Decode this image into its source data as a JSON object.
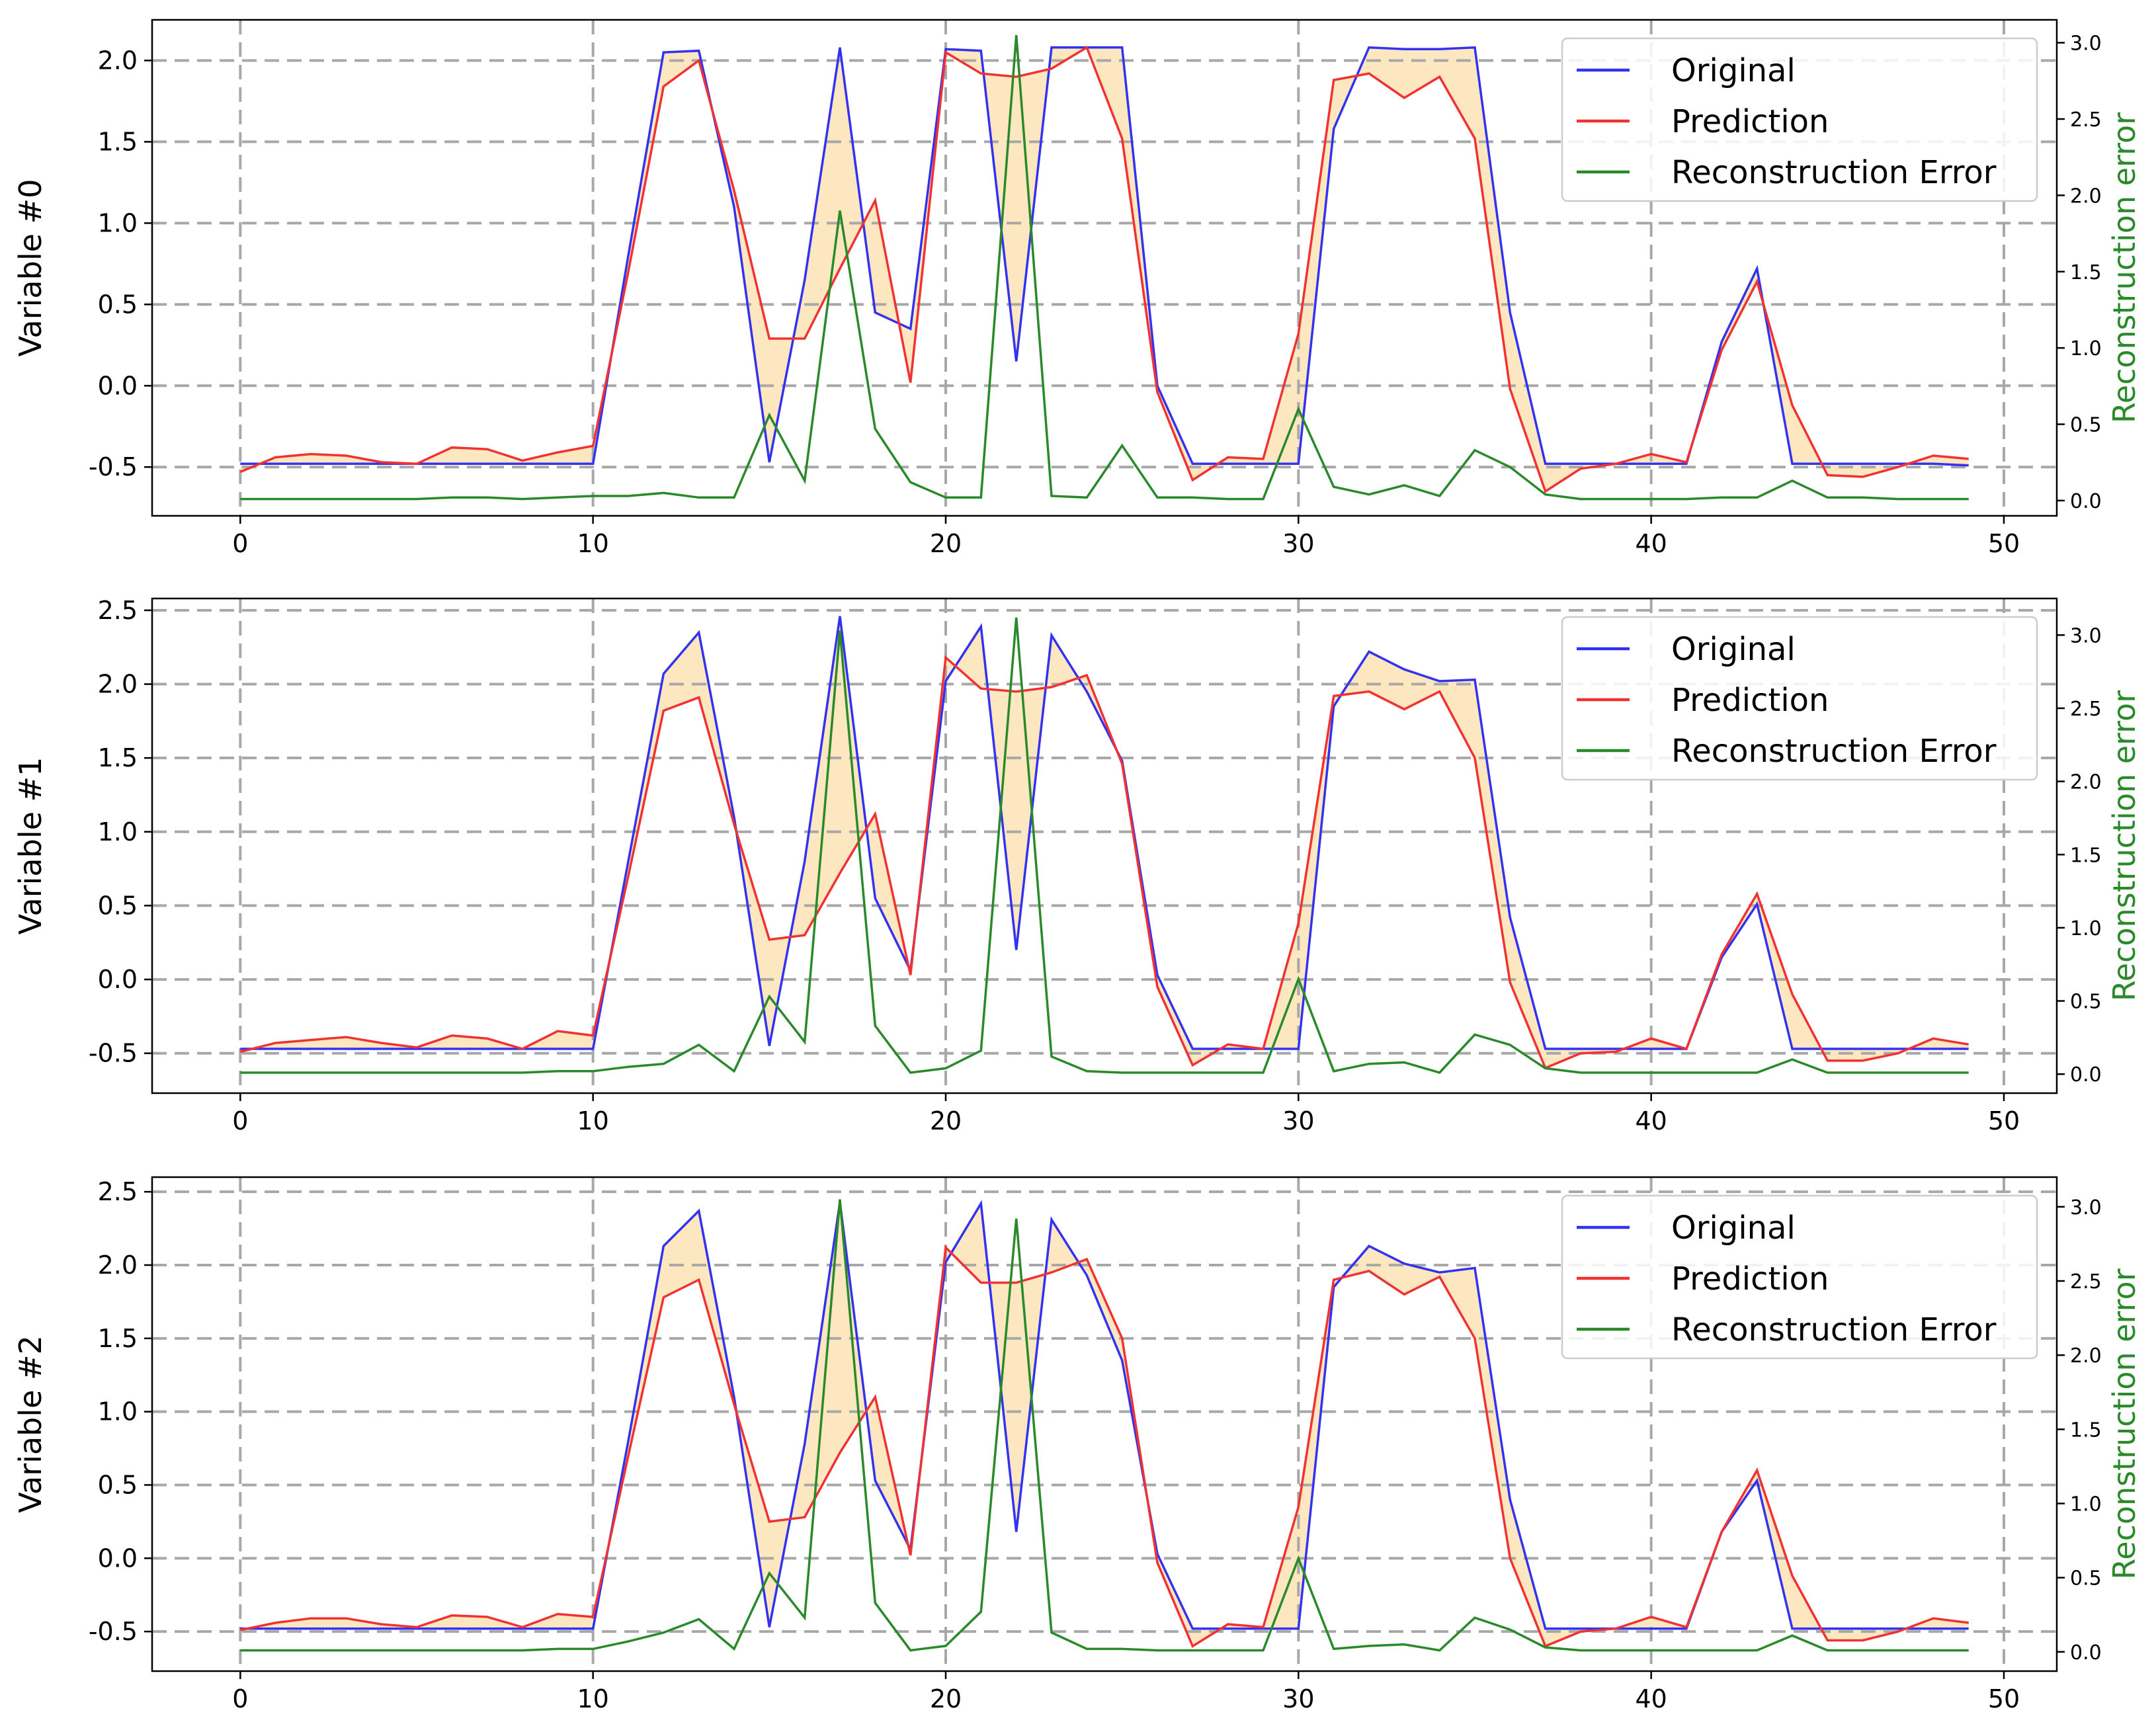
{
  "figure": {
    "colors": {
      "original": "#3232f0",
      "prediction": "#f03232",
      "error": "#2a8a2a",
      "fill": "#fde7c0",
      "grid": "#a8a8a8",
      "right_label": "#2a8a2a"
    }
  },
  "chart_data": [
    {
      "type": "line",
      "ylabel": "Variable #0",
      "y2label": "Reconstruction error",
      "xlim": [
        -2.5,
        51.5
      ],
      "ylim": [
        -0.8,
        2.25
      ],
      "y2lim": [
        -0.1,
        3.15
      ],
      "x_ticks": [
        0,
        10,
        20,
        30,
        40,
        50
      ],
      "y_ticks": [
        -0.5,
        0.0,
        0.5,
        1.0,
        1.5,
        2.0
      ],
      "y2_ticks": [
        0.0,
        0.5,
        1.0,
        1.5,
        2.0,
        2.5,
        3.0
      ],
      "grid": true,
      "legend_position": "upper right",
      "fill_between": [
        "Original",
        "Prediction"
      ],
      "series": [
        {
          "name": "Original",
          "axis": "left",
          "values": [
            -0.48,
            -0.48,
            -0.48,
            -0.48,
            -0.48,
            -0.48,
            -0.48,
            -0.48,
            -0.48,
            -0.48,
            -0.48,
            0.8,
            2.05,
            2.06,
            1.1,
            -0.47,
            0.65,
            2.08,
            0.45,
            0.35,
            2.07,
            2.06,
            0.15,
            2.08,
            2.08,
            2.08,
            0.0,
            -0.48,
            -0.48,
            -0.48,
            -0.48,
            1.58,
            2.08,
            2.07,
            2.07,
            2.08,
            0.45,
            -0.48,
            -0.48,
            -0.48,
            -0.48,
            -0.48,
            0.27,
            0.72,
            -0.48,
            -0.48,
            -0.48,
            -0.48,
            -0.48,
            -0.49
          ]
        },
        {
          "name": "Prediction",
          "axis": "left",
          "values": [
            -0.53,
            -0.44,
            -0.42,
            -0.43,
            -0.47,
            -0.48,
            -0.38,
            -0.39,
            -0.46,
            -0.41,
            -0.37,
            0.7,
            1.84,
            2.0,
            1.2,
            0.29,
            0.29,
            0.72,
            1.14,
            0.02,
            2.05,
            1.92,
            1.9,
            1.95,
            2.08,
            1.52,
            -0.04,
            -0.58,
            -0.44,
            -0.45,
            0.32,
            1.88,
            1.92,
            1.77,
            1.9,
            1.52,
            -0.02,
            -0.65,
            -0.51,
            -0.48,
            -0.42,
            -0.47,
            0.22,
            0.64,
            -0.12,
            -0.55,
            -0.56,
            -0.5,
            -0.43,
            -0.45
          ]
        },
        {
          "name": "Reconstruction Error",
          "axis": "right",
          "values": [
            0.01,
            0.01,
            0.01,
            0.01,
            0.01,
            0.01,
            0.02,
            0.02,
            0.01,
            0.02,
            0.03,
            0.03,
            0.05,
            0.02,
            0.02,
            0.56,
            0.13,
            1.9,
            0.47,
            0.12,
            0.02,
            0.02,
            3.05,
            0.03,
            0.02,
            0.36,
            0.02,
            0.02,
            0.01,
            0.01,
            0.6,
            0.09,
            0.04,
            0.1,
            0.03,
            0.33,
            0.22,
            0.04,
            0.01,
            0.01,
            0.01,
            0.01,
            0.02,
            0.02,
            0.13,
            0.02,
            0.02,
            0.01,
            0.01,
            0.01
          ]
        }
      ]
    },
    {
      "type": "line",
      "ylabel": "Variable #1",
      "y2label": "Reconstruction error",
      "xlim": [
        -2.5,
        51.5
      ],
      "ylim": [
        -0.77,
        2.58
      ],
      "y2lim": [
        -0.13,
        3.25
      ],
      "x_ticks": [
        0,
        10,
        20,
        30,
        40,
        50
      ],
      "y_ticks": [
        -0.5,
        0.0,
        0.5,
        1.0,
        1.5,
        2.0,
        2.5
      ],
      "y2_ticks": [
        0.0,
        0.5,
        1.0,
        1.5,
        2.0,
        2.5,
        3.0
      ],
      "grid": true,
      "legend_position": "upper right",
      "fill_between": [
        "Original",
        "Prediction"
      ],
      "series": [
        {
          "name": "Original",
          "axis": "left",
          "values": [
            -0.47,
            -0.47,
            -0.47,
            -0.47,
            -0.47,
            -0.47,
            -0.47,
            -0.47,
            -0.47,
            -0.47,
            -0.47,
            0.8,
            2.07,
            2.35,
            1.1,
            -0.45,
            0.8,
            2.46,
            0.55,
            0.06,
            2.02,
            2.39,
            0.2,
            2.33,
            1.95,
            1.48,
            0.03,
            -0.47,
            -0.47,
            -0.47,
            -0.47,
            1.85,
            2.22,
            2.1,
            2.02,
            2.03,
            0.42,
            -0.47,
            -0.47,
            -0.47,
            -0.47,
            -0.47,
            0.15,
            0.51,
            -0.47,
            -0.47,
            -0.47,
            -0.47,
            -0.47,
            -0.47
          ]
        },
        {
          "name": "Prediction",
          "axis": "left",
          "values": [
            -0.49,
            -0.43,
            -0.41,
            -0.39,
            -0.43,
            -0.46,
            -0.38,
            -0.4,
            -0.47,
            -0.35,
            -0.38,
            0.7,
            1.82,
            1.91,
            1.05,
            0.27,
            0.3,
            0.72,
            1.12,
            0.03,
            2.18,
            1.97,
            1.95,
            1.98,
            2.06,
            1.46,
            -0.05,
            -0.58,
            -0.44,
            -0.47,
            0.38,
            1.92,
            1.95,
            1.83,
            1.95,
            1.5,
            -0.02,
            -0.6,
            -0.5,
            -0.49,
            -0.4,
            -0.47,
            0.17,
            0.58,
            -0.1,
            -0.55,
            -0.55,
            -0.5,
            -0.4,
            -0.44
          ]
        },
        {
          "name": "Reconstruction Error",
          "axis": "right",
          "values": [
            0.01,
            0.01,
            0.01,
            0.01,
            0.01,
            0.01,
            0.01,
            0.01,
            0.01,
            0.02,
            0.02,
            0.05,
            0.07,
            0.2,
            0.02,
            0.53,
            0.22,
            3.03,
            0.33,
            0.01,
            0.04,
            0.16,
            3.12,
            0.12,
            0.02,
            0.01,
            0.01,
            0.01,
            0.01,
            0.01,
            0.65,
            0.02,
            0.07,
            0.08,
            0.01,
            0.27,
            0.2,
            0.04,
            0.01,
            0.01,
            0.01,
            0.01,
            0.01,
            0.01,
            0.1,
            0.01,
            0.01,
            0.01,
            0.01,
            0.01
          ]
        }
      ]
    },
    {
      "type": "line",
      "ylabel": "Variable #2",
      "y2label": "Reconstruction error",
      "xlim": [
        -2.5,
        51.5
      ],
      "ylim": [
        -0.77,
        2.6
      ],
      "y2lim": [
        -0.13,
        3.2
      ],
      "x_ticks": [
        0,
        10,
        20,
        30,
        40,
        50
      ],
      "y_ticks": [
        -0.5,
        0.0,
        0.5,
        1.0,
        1.5,
        2.0,
        2.5
      ],
      "y2_ticks": [
        0.0,
        0.5,
        1.0,
        1.5,
        2.0,
        2.5,
        3.0
      ],
      "grid": true,
      "legend_position": "upper right",
      "fill_between": [
        "Original",
        "Prediction"
      ],
      "series": [
        {
          "name": "Original",
          "axis": "left",
          "values": [
            -0.48,
            -0.48,
            -0.48,
            -0.48,
            -0.48,
            -0.48,
            -0.48,
            -0.48,
            -0.48,
            -0.48,
            -0.48,
            0.8,
            2.13,
            2.37,
            1.1,
            -0.47,
            0.78,
            2.43,
            0.53,
            0.06,
            2.02,
            2.42,
            0.18,
            2.31,
            1.93,
            1.35,
            0.03,
            -0.48,
            -0.48,
            -0.48,
            -0.48,
            1.85,
            2.13,
            2.01,
            1.95,
            1.98,
            0.4,
            -0.48,
            -0.48,
            -0.48,
            -0.48,
            -0.48,
            0.18,
            0.53,
            -0.48,
            -0.48,
            -0.48,
            -0.48,
            -0.48,
            -0.48
          ]
        },
        {
          "name": "Prediction",
          "axis": "left",
          "values": [
            -0.49,
            -0.44,
            -0.41,
            -0.41,
            -0.45,
            -0.47,
            -0.39,
            -0.4,
            -0.47,
            -0.38,
            -0.4,
            0.7,
            1.78,
            1.9,
            1.05,
            0.25,
            0.28,
            0.72,
            1.1,
            0.02,
            2.12,
            1.88,
            1.88,
            1.95,
            2.04,
            1.5,
            -0.03,
            -0.6,
            -0.45,
            -0.47,
            0.35,
            1.9,
            1.96,
            1.8,
            1.92,
            1.5,
            0.0,
            -0.6,
            -0.5,
            -0.48,
            -0.4,
            -0.47,
            0.18,
            0.6,
            -0.12,
            -0.56,
            -0.56,
            -0.5,
            -0.41,
            -0.44
          ]
        },
        {
          "name": "Reconstruction Error",
          "axis": "right",
          "values": [
            0.01,
            0.01,
            0.01,
            0.01,
            0.01,
            0.01,
            0.01,
            0.01,
            0.01,
            0.02,
            0.02,
            0.07,
            0.13,
            0.22,
            0.02,
            0.53,
            0.23,
            3.05,
            0.33,
            0.01,
            0.04,
            0.27,
            2.92,
            0.13,
            0.02,
            0.02,
            0.01,
            0.01,
            0.01,
            0.01,
            0.63,
            0.02,
            0.04,
            0.05,
            0.01,
            0.23,
            0.15,
            0.03,
            0.01,
            0.01,
            0.01,
            0.01,
            0.01,
            0.01,
            0.11,
            0.01,
            0.01,
            0.01,
            0.01,
            0.01
          ]
        }
      ]
    }
  ]
}
